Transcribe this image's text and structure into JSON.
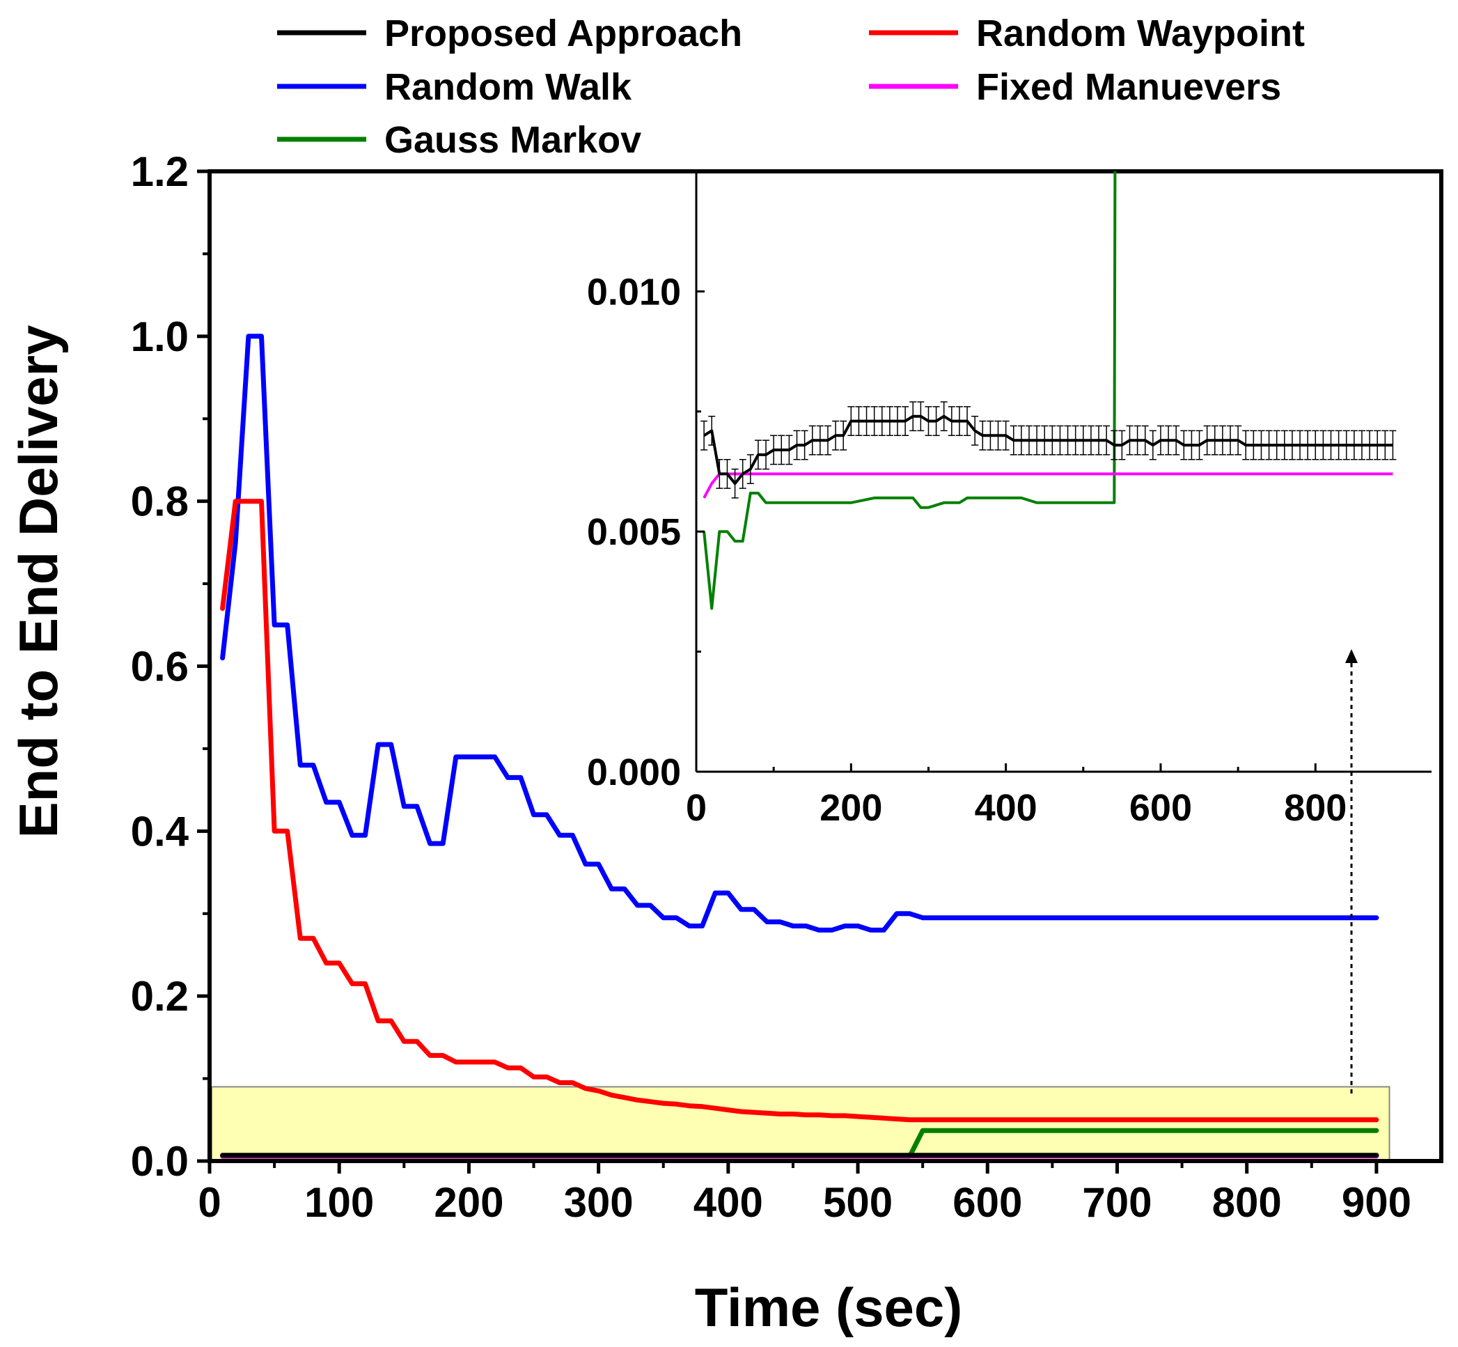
{
  "chart_data": [
    {
      "id": "main",
      "type": "line",
      "title": "",
      "xlabel": "Time (sec)",
      "ylabel": "End to End Delivery",
      "xlim": [
        0,
        950
      ],
      "ylim": [
        0,
        1.2
      ],
      "xticks": [
        "0",
        "100",
        "200",
        "300",
        "400",
        "500",
        "600",
        "700",
        "800",
        "900"
      ],
      "yticks": [
        "0.0",
        "0.2",
        "0.4",
        "0.6",
        "0.8",
        "1.0",
        "1.2"
      ],
      "legend": {
        "placement": "top",
        "entries": [
          "Proposed Approach",
          "Random Waypoint",
          "Random Walk",
          "Fixed Manuevers",
          "Gauss Markov"
        ]
      },
      "highlight_region": {
        "x": [
          0,
          910
        ],
        "y": [
          0,
          0.09
        ],
        "color": "#ffff99"
      },
      "series": [
        {
          "name": "Proposed Approach",
          "color": "#000000",
          "x": [
            10,
            900
          ],
          "y": [
            0.007,
            0.007
          ]
        },
        {
          "name": "Random Waypoint",
          "color": "#ff0000",
          "x": [
            10,
            20,
            30,
            40,
            50,
            60,
            70,
            80,
            90,
            100,
            110,
            120,
            130,
            140,
            150,
            160,
            170,
            180,
            190,
            200,
            210,
            220,
            230,
            240,
            250,
            260,
            270,
            280,
            290,
            300,
            310,
            320,
            330,
            340,
            350,
            360,
            370,
            380,
            390,
            400,
            410,
            420,
            430,
            440,
            450,
            460,
            470,
            480,
            490,
            500,
            510,
            520,
            530,
            540,
            550,
            560,
            600,
            700,
            800,
            900
          ],
          "y": [
            0.67,
            0.8,
            0.8,
            0.8,
            0.4,
            0.4,
            0.27,
            0.27,
            0.24,
            0.24,
            0.215,
            0.215,
            0.17,
            0.17,
            0.145,
            0.145,
            0.128,
            0.128,
            0.12,
            0.12,
            0.12,
            0.12,
            0.113,
            0.113,
            0.102,
            0.102,
            0.095,
            0.095,
            0.088,
            0.085,
            0.08,
            0.077,
            0.074,
            0.072,
            0.07,
            0.069,
            0.067,
            0.066,
            0.064,
            0.062,
            0.06,
            0.059,
            0.058,
            0.057,
            0.057,
            0.056,
            0.056,
            0.055,
            0.055,
            0.054,
            0.053,
            0.052,
            0.051,
            0.05,
            0.05,
            0.05,
            0.05,
            0.05,
            0.05,
            0.05
          ]
        },
        {
          "name": "Random Walk",
          "color": "#0000ff",
          "x": [
            10,
            20,
            30,
            40,
            50,
            60,
            70,
            80,
            90,
            100,
            110,
            120,
            130,
            140,
            150,
            160,
            170,
            180,
            190,
            200,
            210,
            220,
            230,
            240,
            250,
            260,
            270,
            280,
            290,
            300,
            310,
            320,
            330,
            340,
            350,
            360,
            370,
            380,
            390,
            400,
            410,
            420,
            430,
            440,
            450,
            460,
            470,
            480,
            490,
            500,
            510,
            520,
            530,
            540,
            550,
            600,
            700,
            800,
            900
          ],
          "y": [
            0.61,
            0.75,
            1.0,
            1.0,
            0.65,
            0.65,
            0.48,
            0.48,
            0.435,
            0.435,
            0.395,
            0.395,
            0.505,
            0.505,
            0.43,
            0.43,
            0.385,
            0.385,
            0.49,
            0.49,
            0.49,
            0.49,
            0.465,
            0.465,
            0.42,
            0.42,
            0.395,
            0.395,
            0.36,
            0.36,
            0.33,
            0.33,
            0.31,
            0.31,
            0.295,
            0.295,
            0.285,
            0.285,
            0.325,
            0.325,
            0.305,
            0.305,
            0.29,
            0.29,
            0.285,
            0.285,
            0.28,
            0.28,
            0.285,
            0.285,
            0.28,
            0.28,
            0.3,
            0.3,
            0.295,
            0.295,
            0.295,
            0.295,
            0.295
          ]
        },
        {
          "name": "Fixed Manuevers",
          "color": "#ff00ff",
          "x": [
            10,
            900
          ],
          "y": [
            0.006,
            0.006
          ]
        },
        {
          "name": "Gauss Markov",
          "color": "#008000",
          "x": [
            10,
            540,
            550,
            900
          ],
          "y": [
            0.0057,
            0.0057,
            0.037,
            0.037
          ]
        }
      ]
    },
    {
      "id": "inset",
      "type": "line",
      "title": "",
      "xlabel": "",
      "ylabel": "",
      "xlim": [
        0,
        950
      ],
      "ylim": [
        0,
        0.0125
      ],
      "xticks": [
        "0",
        "200",
        "400",
        "600",
        "800"
      ],
      "yticks": [
        "0.000",
        "0.005",
        "0.010"
      ],
      "series": [
        {
          "name": "Proposed Approach",
          "color": "#000000",
          "error_bars": 0.0003,
          "x": [
            10,
            20,
            30,
            40,
            50,
            60,
            70,
            80,
            90,
            100,
            110,
            120,
            130,
            140,
            150,
            160,
            170,
            180,
            190,
            200,
            210,
            220,
            230,
            240,
            250,
            260,
            270,
            280,
            290,
            300,
            310,
            320,
            330,
            340,
            350,
            360,
            370,
            380,
            390,
            400,
            410,
            420,
            430,
            440,
            450,
            460,
            470,
            480,
            490,
            500,
            510,
            520,
            530,
            540,
            550,
            560,
            570,
            580,
            590,
            600,
            610,
            620,
            630,
            640,
            650,
            660,
            670,
            680,
            690,
            700,
            710,
            720,
            730,
            740,
            750,
            760,
            770,
            780,
            790,
            800,
            810,
            820,
            830,
            840,
            850,
            860,
            870,
            880,
            890,
            900
          ],
          "y": [
            0.007,
            0.0071,
            0.0062,
            0.0062,
            0.006,
            0.0062,
            0.0063,
            0.0066,
            0.0066,
            0.0067,
            0.0067,
            0.0067,
            0.0068,
            0.0068,
            0.0069,
            0.0069,
            0.0069,
            0.007,
            0.007,
            0.0073,
            0.0073,
            0.0073,
            0.0073,
            0.0073,
            0.0073,
            0.0073,
            0.0073,
            0.0074,
            0.0074,
            0.0073,
            0.0073,
            0.0074,
            0.0073,
            0.0073,
            0.0073,
            0.0071,
            0.007,
            0.007,
            0.007,
            0.007,
            0.0069,
            0.0069,
            0.0069,
            0.0069,
            0.0069,
            0.0069,
            0.0069,
            0.0069,
            0.0069,
            0.0069,
            0.0069,
            0.0069,
            0.0069,
            0.0068,
            0.0068,
            0.0069,
            0.0069,
            0.0069,
            0.0068,
            0.0069,
            0.0069,
            0.0069,
            0.0068,
            0.0068,
            0.0068,
            0.0069,
            0.0069,
            0.0069,
            0.0069,
            0.0069,
            0.0068,
            0.0068,
            0.0068,
            0.0068,
            0.0068,
            0.0068,
            0.0068,
            0.0068,
            0.0068,
            0.0068,
            0.0068,
            0.0068,
            0.0068,
            0.0068,
            0.0068,
            0.0068,
            0.0068,
            0.0068,
            0.0068,
            0.0068
          ]
        },
        {
          "name": "Fixed Manuevers",
          "color": "#ff00ff",
          "x": [
            10,
            20,
            30,
            40,
            900
          ],
          "y": [
            0.0057,
            0.006,
            0.0062,
            0.0062,
            0.0062
          ]
        },
        {
          "name": "Gauss Markov",
          "color": "#008000",
          "x": [
            10,
            20,
            30,
            40,
            50,
            60,
            70,
            80,
            90,
            100,
            140,
            160,
            200,
            230,
            260,
            280,
            290,
            300,
            320,
            340,
            350,
            360,
            400,
            420,
            440,
            450,
            480,
            510,
            530,
            540,
            541
          ],
          "y": [
            0.005,
            0.0034,
            0.005,
            0.005,
            0.0048,
            0.0048,
            0.0058,
            0.0058,
            0.0056,
            0.0056,
            0.0056,
            0.0056,
            0.0056,
            0.0057,
            0.0057,
            0.0057,
            0.0055,
            0.0055,
            0.0056,
            0.0056,
            0.0057,
            0.0057,
            0.0057,
            0.0057,
            0.0056,
            0.0056,
            0.0056,
            0.0056,
            0.0056,
            0.0056,
            0.0125
          ]
        }
      ]
    }
  ]
}
